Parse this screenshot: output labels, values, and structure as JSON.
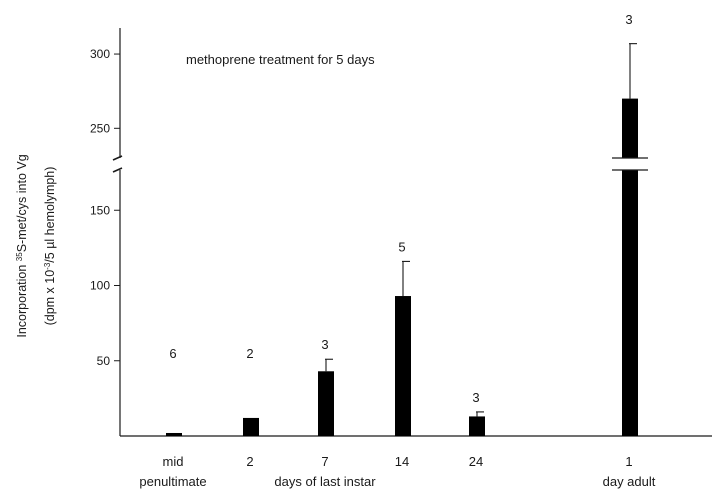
{
  "chart_data": {
    "type": "bar",
    "annotation": "methoprene treatment for 5 days",
    "ylabel_line1_prefix": "Incorporation ",
    "ylabel_line1_sup": "35",
    "ylabel_line1_suffix": "S-met/cys    into Vg",
    "ylabel_line2_prefix": "(dpm x 10",
    "ylabel_line2_sup": "-3",
    "ylabel_line2_suffix": "/5 µl hemolymph)",
    "axis_break": {
      "from": 175,
      "to": 230
    },
    "yticks": [
      50,
      100,
      150,
      250,
      300
    ],
    "categories": [
      {
        "line1": "mid",
        "line2": "penultimate"
      },
      {
        "line1": "2",
        "line2": ""
      },
      {
        "line1": "7",
        "line2": "days of last instar"
      },
      {
        "line1": "14",
        "line2": ""
      },
      {
        "line1": "24",
        "line2": ""
      },
      {
        "line1": "1",
        "line2": "day adult"
      }
    ],
    "values": [
      2,
      12,
      43,
      93,
      13,
      270
    ],
    "errors": [
      0,
      0,
      8,
      23,
      3,
      37
    ],
    "n_labels": [
      "6",
      "2",
      "3",
      "5",
      "3",
      "3"
    ],
    "bar_color": "#000000"
  }
}
